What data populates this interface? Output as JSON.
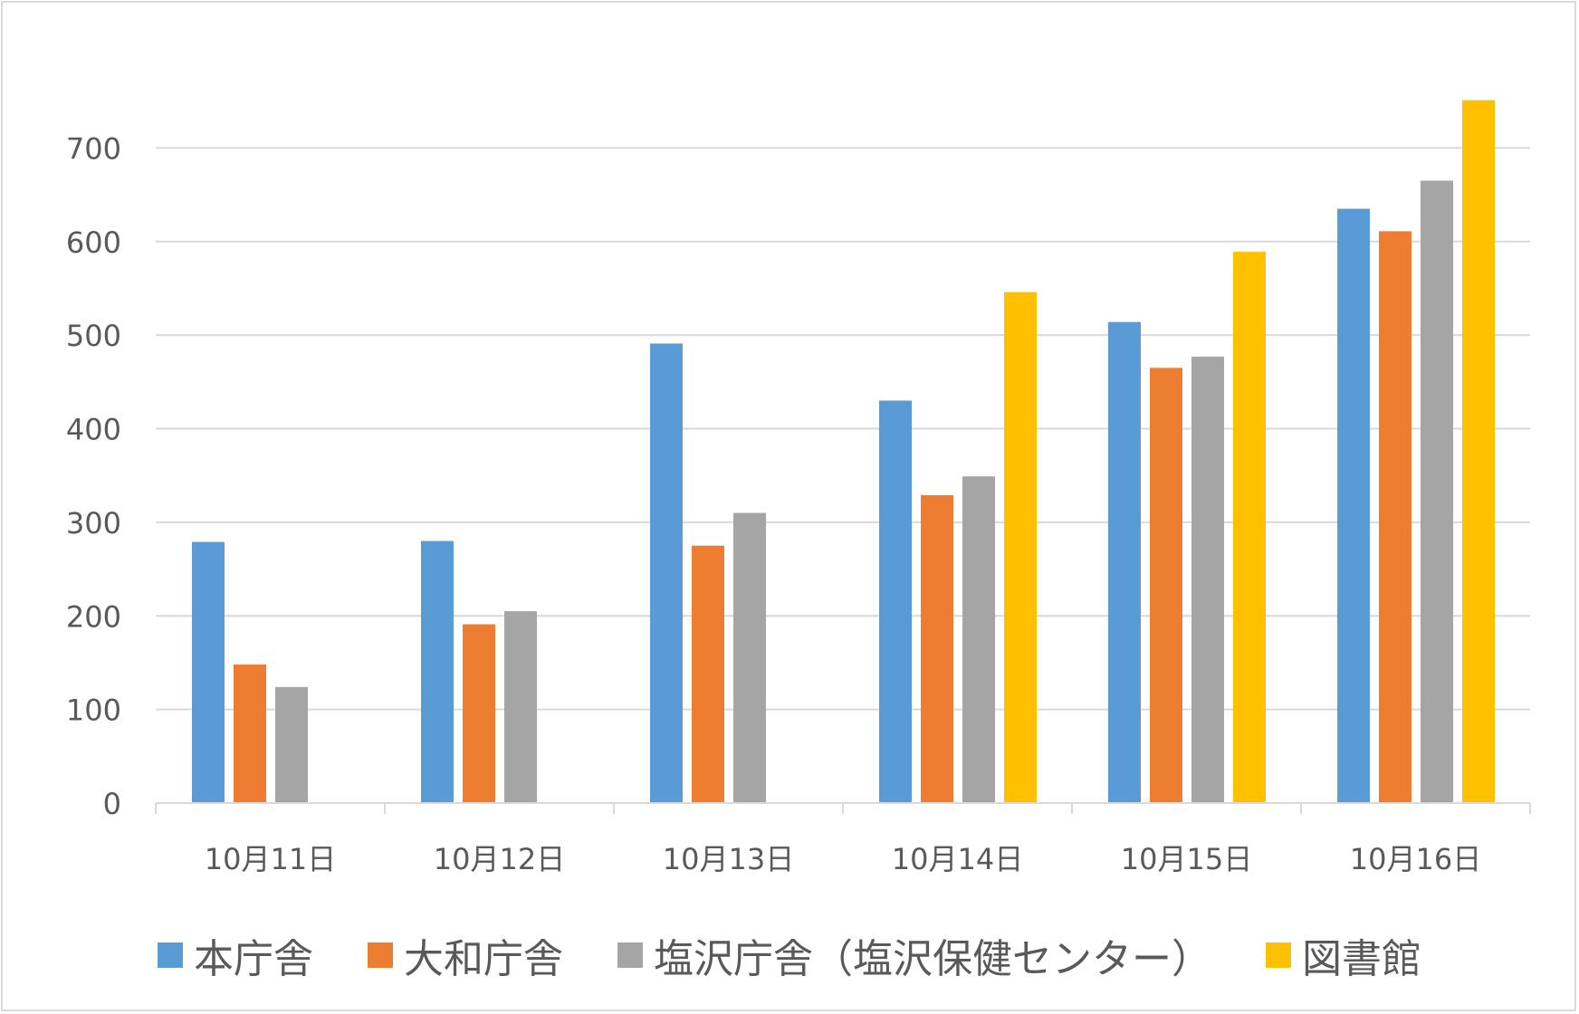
{
  "chart_data": {
    "type": "bar",
    "title": "",
    "xlabel": "",
    "ylabel": "",
    "categories": [
      "10月11日",
      "10月12日",
      "10月13日",
      "10月14日",
      "10月15日",
      "10月16日"
    ],
    "series": [
      {
        "name": "本庁舎",
        "color": "#5b9bd5",
        "values": [
          279,
          280,
          491,
          430,
          514,
          635
        ]
      },
      {
        "name": "大和庁舎",
        "color": "#ed7d31",
        "values": [
          148,
          191,
          275,
          329,
          465,
          611
        ]
      },
      {
        "name": "塩沢庁舎（塩沢保健センター）",
        "color": "#a5a5a5",
        "values": [
          124,
          205,
          310,
          349,
          477,
          665
        ]
      },
      {
        "name": "図書館",
        "color": "#ffc000",
        "values": [
          null,
          null,
          null,
          546,
          589,
          751
        ]
      }
    ],
    "yticks": [
      "0",
      "100",
      "200",
      "300",
      "400",
      "500",
      "600",
      "700"
    ],
    "ylim": [
      0,
      800
    ],
    "grid": true,
    "legend_position": "bottom"
  }
}
